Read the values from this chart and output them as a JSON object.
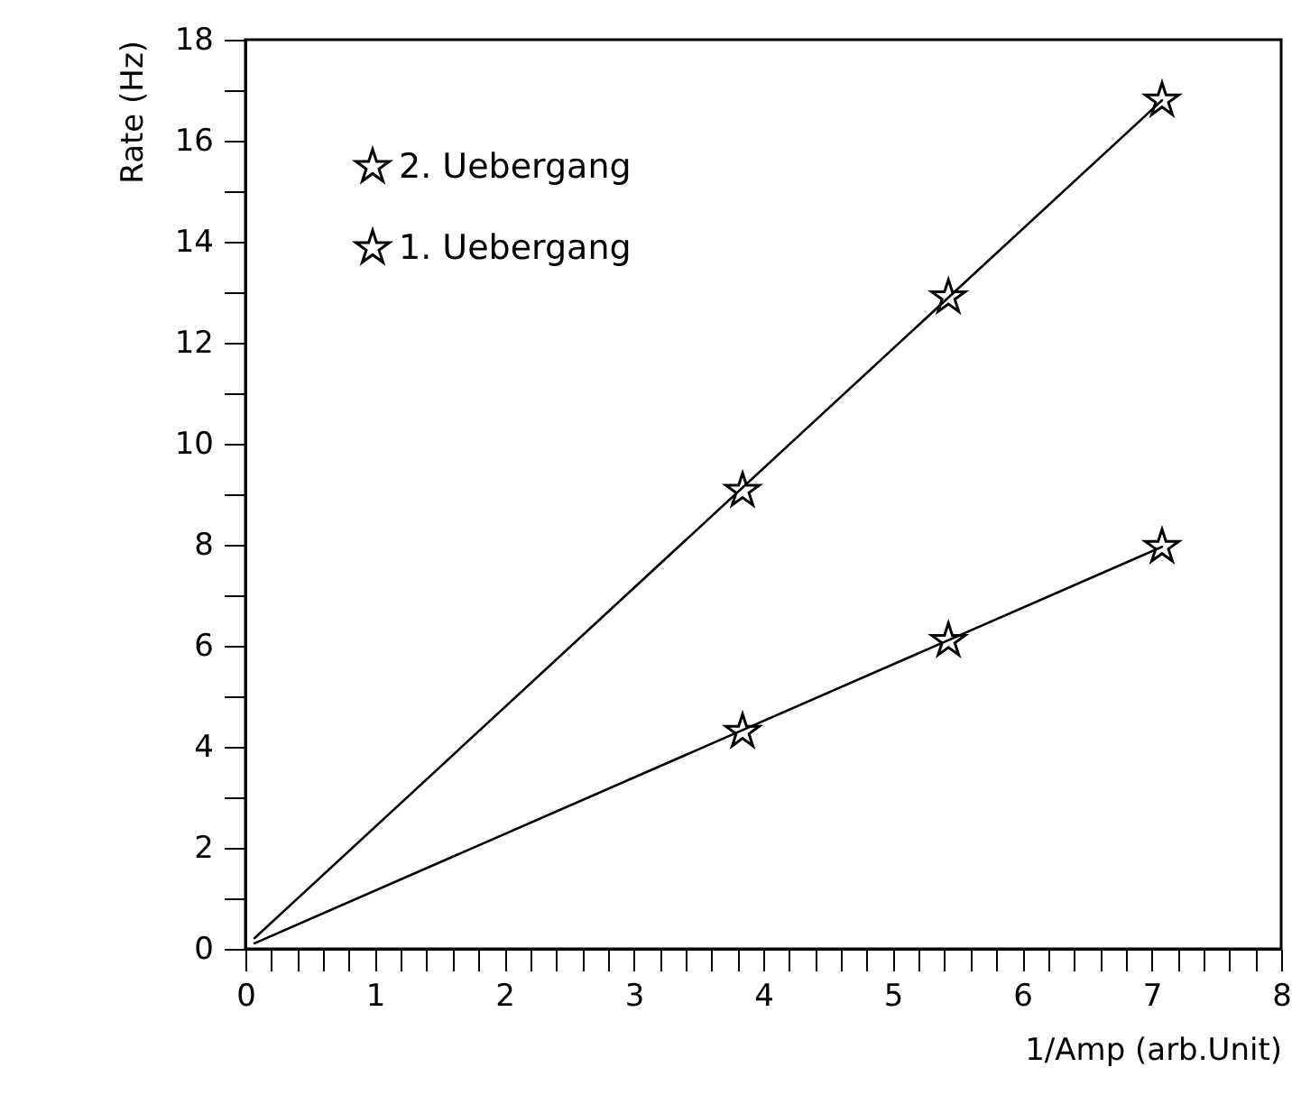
{
  "chart_data": {
    "type": "scatter",
    "xlabel": "1/Amp (arb.Unit)",
    "ylabel": "Rate (Hz)",
    "marker": "star",
    "legend": "top left",
    "grid": false,
    "xlim": [
      0,
      8
    ],
    "ylim": [
      0,
      18
    ],
    "xticks": [
      0,
      {
        "value": 0.2,
        "label": null
      },
      {
        "value": 0.4,
        "label": null
      },
      {
        "value": 0.6,
        "label": null
      },
      {
        "value": 0.8,
        "label": null
      },
      1,
      {
        "value": 1.2,
        "label": null
      },
      {
        "value": 1.4,
        "label": null
      },
      {
        "value": 1.6,
        "label": null
      },
      {
        "value": 1.8,
        "label": null
      },
      2,
      {
        "value": 2.2,
        "label": null
      },
      {
        "value": 2.4,
        "label": null
      },
      {
        "value": 2.6,
        "label": null
      },
      {
        "value": 2.8,
        "label": null
      },
      3,
      {
        "value": 3.2,
        "label": null
      },
      {
        "value": 3.4,
        "label": null
      },
      {
        "value": 3.6,
        "label": null
      },
      {
        "value": 3.8,
        "label": null
      },
      4,
      {
        "value": 4.2,
        "label": null
      },
      {
        "value": 4.4,
        "label": null
      },
      {
        "value": 4.6,
        "label": null
      },
      {
        "value": 4.8,
        "label": null
      },
      5,
      {
        "value": 5.2,
        "label": null
      },
      {
        "value": 5.4,
        "label": null
      },
      {
        "value": 5.6,
        "label": null
      },
      {
        "value": 5.8,
        "label": null
      },
      6,
      {
        "value": 6.2,
        "label": null
      },
      {
        "value": 6.4,
        "label": null
      },
      {
        "value": 6.6,
        "label": null
      },
      {
        "value": 6.8,
        "label": null
      },
      7,
      {
        "value": 7.2,
        "label": null
      },
      {
        "value": 7.4,
        "label": null
      },
      {
        "value": 7.6,
        "label": null
      },
      {
        "value": 7.8,
        "label": null
      },
      8
    ],
    "yticks": [
      0,
      {
        "value": 1,
        "label": null
      },
      2,
      {
        "value": 3,
        "label": null
      },
      4,
      {
        "value": 5,
        "label": null
      },
      6,
      {
        "value": 7,
        "label": null
      },
      8,
      {
        "value": 9,
        "label": null
      },
      10,
      {
        "value": 11,
        "label": null
      },
      12,
      {
        "value": 13,
        "label": null
      },
      14,
      {
        "value": 15,
        "label": null
      },
      16,
      {
        "value": 17,
        "label": null
      },
      18
    ],
    "series": [
      {
        "name": "2. Uebergang",
        "color": "#000000",
        "x": [
          3.84,
          5.43,
          7.08
        ],
        "values": [
          9.07,
          12.9,
          16.8
        ]
      },
      {
        "name": "1. Uebergang",
        "color": "#000000",
        "x": [
          3.84,
          5.43,
          7.08
        ],
        "values": [
          4.3,
          6.1,
          7.96
        ]
      },
      {
        "type": "line",
        "marker": "none",
        "color": "#000000",
        "x": [
          0.07,
          7.08
        ],
        "values": [
          0.21,
          16.8
        ]
      },
      {
        "type": "line",
        "marker": "none",
        "color": "#000000",
        "x": [
          0.07,
          7.08
        ],
        "values": [
          0.11,
          7.96
        ]
      }
    ]
  }
}
